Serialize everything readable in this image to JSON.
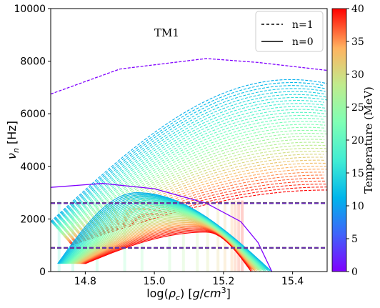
{
  "chart_data": {
    "type": "line",
    "annotation": "TM1",
    "xlabel": "log(ρ_c) [g/cm³]",
    "ylabel": "ν_n [Hz]",
    "xlim": [
      14.7,
      15.5
    ],
    "ylim": [
      0,
      10000
    ],
    "x_ticks": [
      "14.8",
      "15.0",
      "15.2",
      "15.4"
    ],
    "y_ticks": [
      "0",
      "2000",
      "4000",
      "6000",
      "8000",
      "10000"
    ],
    "legend": {
      "placement": "top-right",
      "entries": [
        {
          "label": "n=1",
          "style": "dashed"
        },
        {
          "label": "n=0",
          "style": "solid"
        }
      ]
    },
    "colorbar": {
      "label": "Temperature (MeV)",
      "range": [
        0,
        40
      ],
      "ticks": [
        "0",
        "5",
        "10",
        "15",
        "20",
        "25",
        "30",
        "35",
        "40"
      ],
      "colormap": "rainbow"
    },
    "reference_lines": [
      {
        "style": "dashed",
        "y": 2600
      },
      {
        "style": "dashed",
        "y": 900
      }
    ],
    "series_highlights": {
      "n1_T0": [
        [
          14.7,
          6750
        ],
        [
          14.9,
          7700
        ],
        [
          15.15,
          8100
        ],
        [
          15.3,
          7950
        ],
        [
          15.5,
          7650
        ]
      ],
      "n0_T0": [
        [
          14.7,
          3200
        ],
        [
          14.85,
          3350
        ],
        [
          15.0,
          3150
        ],
        [
          15.15,
          2600
        ],
        [
          15.25,
          1900
        ],
        [
          15.3,
          1100
        ],
        [
          15.34,
          0
        ]
      ]
    }
  }
}
